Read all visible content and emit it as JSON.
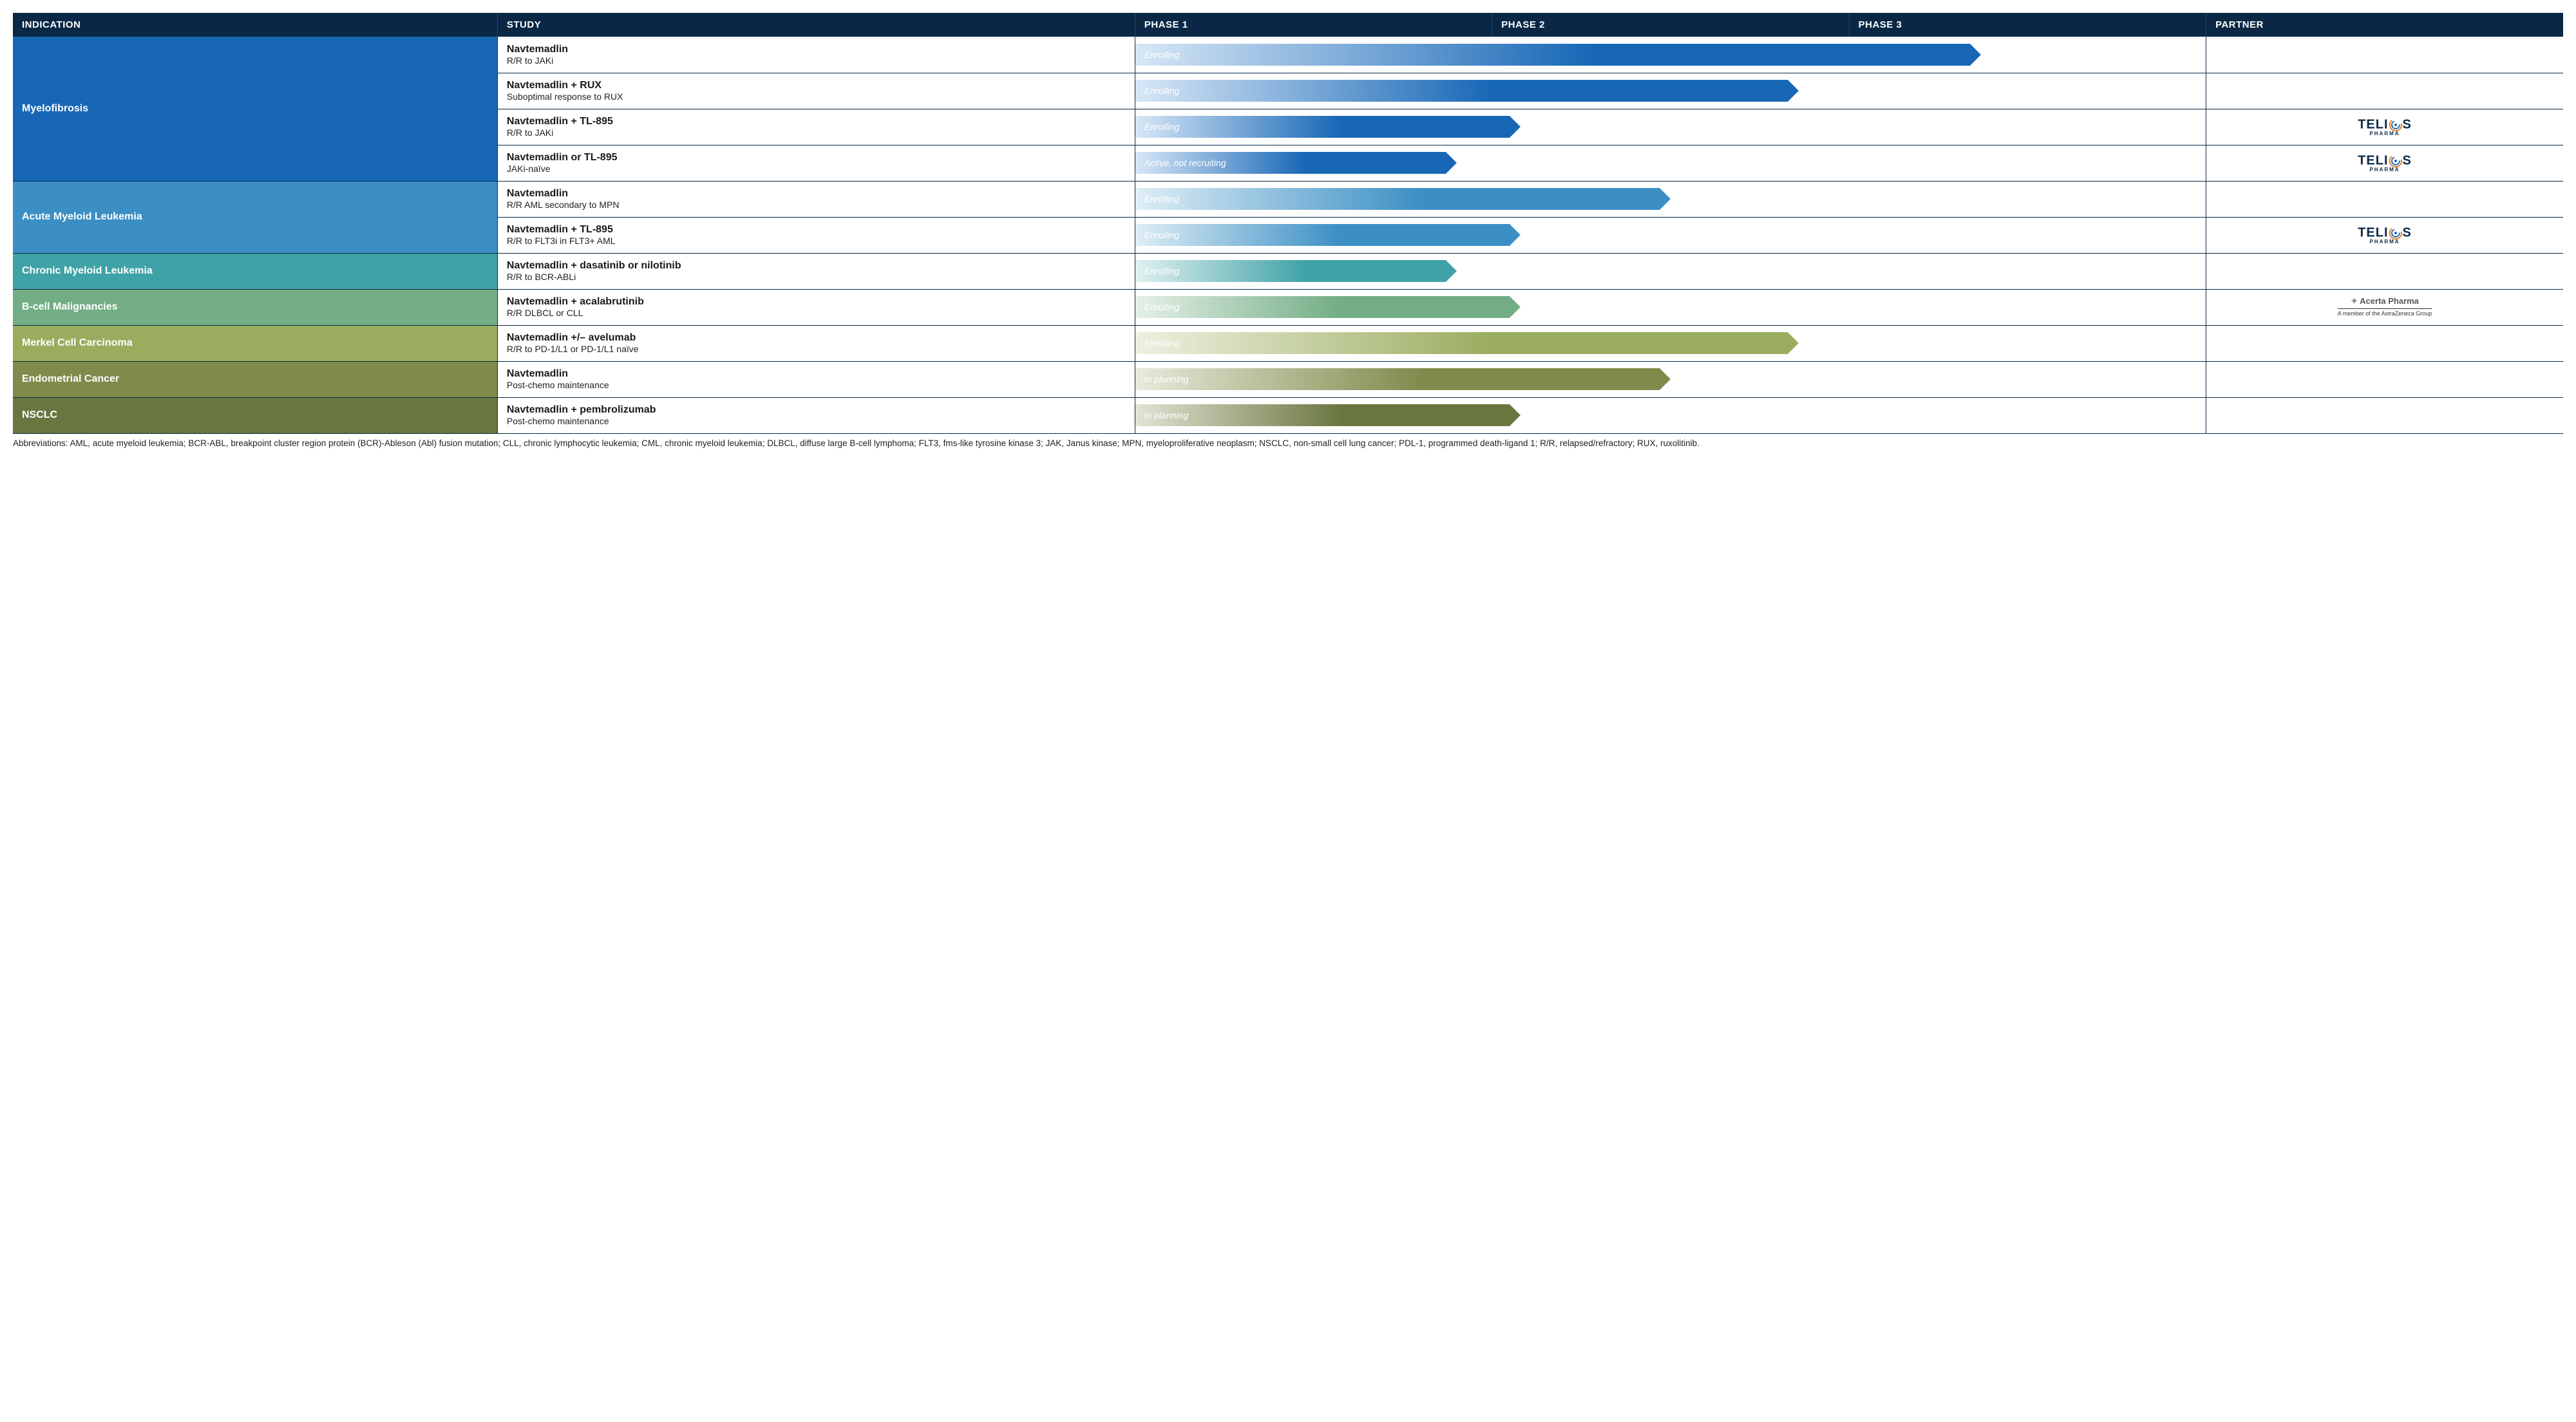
{
  "layout": {
    "col_widths_pct": {
      "indication": 19,
      "study": 25,
      "phases": 42,
      "partner": 14
    }
  },
  "headers": {
    "indication": "INDICATION",
    "study": "STUDY",
    "phase1": "PHASE 1",
    "phase2": "PHASE 2",
    "phase3": "PHASE 3",
    "partner": "PARTNER"
  },
  "header_bg": "#0a2845",
  "indications": [
    {
      "label": "Myelofibrosis",
      "color": "#1767b6",
      "rows": [
        {
          "study": "Navtemadlin",
          "sub": "R/R to JAKi",
          "status": "Enrolling",
          "bar_pct": 79,
          "bar_from": "#d7e7f6",
          "bar_to": "#1767b6",
          "partner": null
        },
        {
          "study": "Navtemadlin + RUX",
          "sub": "Suboptimal response to RUX",
          "status": "Enrolling",
          "bar_pct": 62,
          "bar_from": "#d7e7f6",
          "bar_to": "#1767b6",
          "partner": null
        },
        {
          "study": "Navtemadlin + TL-895",
          "sub": "R/R to JAKi",
          "status": "Enrolling",
          "bar_pct": 36,
          "bar_from": "#d7e7f6",
          "bar_to": "#1767b6",
          "partner": "telios"
        },
        {
          "study": "Navtemadlin or TL-895",
          "sub": "JAKi-naïve",
          "status": "Active, not recruiting",
          "bar_pct": 30,
          "bar_from": "#d7e7f6",
          "bar_to": "#1767b6",
          "partner": "telios"
        }
      ]
    },
    {
      "label": "Acute Myeloid Leukemia",
      "color": "#3b8fc4",
      "rows": [
        {
          "study": "Navtemadlin",
          "sub": "R/R AML secondary to MPN",
          "status": "Enrolling",
          "bar_pct": 50,
          "bar_from": "#dfeef6",
          "bar_to": "#3b8fc4",
          "partner": null
        },
        {
          "study": "Navtemadlin + TL-895",
          "sub": "R/R to FLT3i in  FLT3+ AML",
          "status": "Enrolling",
          "bar_pct": 36,
          "bar_from": "#dfeef6",
          "bar_to": "#3b8fc4",
          "partner": "telios"
        }
      ]
    },
    {
      "label": "Chronic Myeloid Leukemia",
      "color": "#3fa2a7",
      "rows": [
        {
          "study": "Navtemadlin + dasatinib or nilotinib",
          "sub": "R/R to BCR-ABLi",
          "status": "Enrolling",
          "bar_pct": 30,
          "bar_from": "#e0f0f0",
          "bar_to": "#3fa2a7",
          "partner": null
        }
      ]
    },
    {
      "label": "B-cell Malignancies",
      "color": "#72ad85",
      "rows": [
        {
          "study": "Navtemadlin + acalabrutinib",
          "sub": "R/R DLBCL or CLL",
          "status": "Enrolling",
          "bar_pct": 36,
          "bar_from": "#e6f0e8",
          "bar_to": "#72ad85",
          "partner": "acerta"
        }
      ]
    },
    {
      "label": "Merkel Cell Carcinoma",
      "color": "#9aad5f",
      "rows": [
        {
          "study": "Navtemadlin +/– avelumab",
          "sub": "R/R to PD-1/L1 or PD-1/L1 naïve",
          "status": "Enrolling",
          "bar_pct": 62,
          "bar_from": "#eef0e0",
          "bar_to": "#9aad5f",
          "partner": null
        }
      ]
    },
    {
      "label": "Endometrial Cancer",
      "color": "#7f8a4b",
      "rows": [
        {
          "study": "Navtemadlin",
          "sub": "Post-chemo maintenance",
          "status": "In planning",
          "bar_pct": 50,
          "bar_from": "#e8eadb",
          "bar_to": "#7f8a4b",
          "partner": null
        }
      ]
    },
    {
      "label": "NSCLC",
      "color": "#6a7640",
      "rows": [
        {
          "study": "Navtemadlin + pembrolizumab",
          "sub": "Post-chemo maintenance",
          "status": "In planning",
          "bar_pct": 36,
          "bar_from": "#e2e4d4",
          "bar_to": "#6a7640",
          "partner": null
        }
      ]
    }
  ],
  "partners": {
    "telios": {
      "text": "TELI",
      "text2": "S",
      "sub": "PHARMA",
      "ring_outer": "#e67817",
      "ring_inner": "#1767b6"
    },
    "acerta": {
      "name": "Acerta Pharma",
      "sub": "A member of the AstraZeneca Group"
    }
  },
  "footnote": "Abbreviations: AML, acute myeloid leukemia; BCR-ABL, breakpoint cluster region protein (BCR)-Ableson (Abl) fusion mutation; CLL, chronic lymphocytic leukemia; CML, chronic myeloid leukemia; DLBCL, diffuse large B-cell lymphoma; FLT3, fms-like tyrosine kinase 3; JAK, Janus kinase; MPN, myeloproliferative neoplasm; NSCLC, non-small cell lung cancer; PDL-1, programmed death-ligand 1; R/R, relapsed/refractory; RUX, ruxolitinib."
}
